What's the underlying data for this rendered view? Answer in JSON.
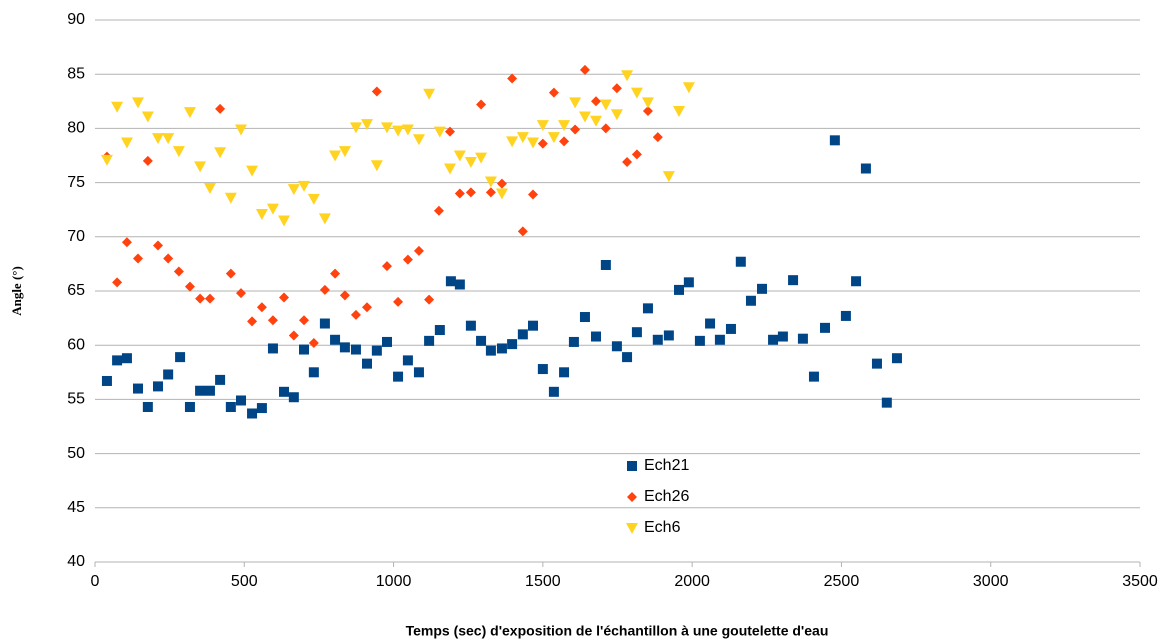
{
  "chart_data": {
    "type": "scatter",
    "x_label": "Temps (sec) d'exposition de l'échantillon à une goutelette d'eau",
    "y_label": "Angle (°)",
    "xlim": [
      0,
      3500
    ],
    "xticks": [
      0,
      500,
      1000,
      1500,
      2000,
      2500,
      3000,
      3500
    ],
    "ylim": [
      40,
      90
    ],
    "yticks": [
      40,
      45,
      50,
      55,
      60,
      65,
      70,
      75,
      80,
      85,
      90
    ],
    "grid": true,
    "legend": "center",
    "series": [
      {
        "name": "Ech21",
        "color": "#004586",
        "marker": "square",
        "x": [
          40,
          74,
          107,
          144,
          177,
          211,
          245,
          285,
          318,
          352,
          385,
          419,
          455,
          489,
          526,
          559,
          596,
          633,
          666,
          700,
          733,
          770,
          804,
          837,
          874,
          911,
          944,
          978,
          1015,
          1048,
          1085,
          1119,
          1155,
          1192,
          1222,
          1259,
          1293,
          1326,
          1363,
          1397,
          1433,
          1467,
          1500,
          1537,
          1571,
          1604,
          1641,
          1678,
          1711,
          1748,
          1782,
          1815,
          1852,
          1885,
          1922,
          1956,
          1989,
          2026,
          2060,
          2093,
          2130,
          2163,
          2197,
          2234,
          2271,
          2304,
          2338,
          2371,
          2408,
          2445,
          2478,
          2515,
          2549,
          2582,
          2619,
          2652,
          2686
        ],
        "values": [
          56.7,
          58.6,
          58.8,
          56.0,
          54.3,
          56.2,
          57.3,
          58.9,
          54.3,
          55.8,
          55.8,
          56.8,
          54.3,
          54.9,
          53.7,
          54.2,
          59.7,
          55.7,
          55.2,
          59.6,
          57.5,
          62.0,
          60.5,
          59.8,
          59.6,
          58.3,
          59.5,
          60.3,
          57.1,
          58.6,
          57.5,
          60.4,
          61.4,
          65.9,
          65.6,
          61.8,
          60.4,
          59.5,
          59.7,
          60.1,
          61.0,
          61.8,
          57.8,
          55.7,
          57.5,
          60.3,
          62.6,
          60.8,
          67.4,
          59.9,
          58.9,
          61.2,
          63.4,
          60.5,
          60.9,
          65.1,
          65.8,
          60.4,
          62.0,
          60.5,
          61.5,
          67.7,
          64.1,
          65.2,
          60.5,
          60.8,
          66.0,
          60.6,
          57.1,
          61.6,
          78.9,
          62.7,
          65.9,
          76.3,
          58.3,
          54.7,
          58.8
        ]
      },
      {
        "name": "Ech26",
        "color": "#ff420e",
        "marker": "diamond",
        "x": [
          40,
          74,
          107,
          144,
          177,
          211,
          245,
          281,
          318,
          352,
          385,
          419,
          455,
          489,
          526,
          559,
          596,
          633,
          666,
          700,
          733,
          770,
          804,
          837,
          874,
          911,
          944,
          978,
          1015,
          1048,
          1085,
          1119,
          1152,
          1189,
          1222,
          1259,
          1293,
          1326,
          1363,
          1397,
          1433,
          1467,
          1500,
          1537,
          1571,
          1608,
          1641,
          1678,
          1711,
          1748,
          1782,
          1815,
          1852,
          1885
        ],
        "values": [
          77.4,
          65.8,
          69.5,
          68.0,
          77.0,
          69.2,
          68.0,
          66.8,
          65.4,
          64.3,
          64.3,
          81.8,
          66.6,
          64.8,
          62.2,
          63.5,
          62.3,
          64.4,
          60.9,
          62.3,
          60.2,
          65.1,
          66.6,
          64.6,
          62.8,
          63.5,
          83.4,
          67.3,
          64.0,
          67.9,
          68.7,
          64.2,
          72.4,
          79.7,
          74.0,
          74.1,
          82.2,
          74.1,
          74.9,
          84.6,
          70.5,
          73.9,
          78.6,
          83.3,
          78.8,
          79.9,
          85.4,
          82.5,
          80.0,
          83.7,
          76.9,
          77.6,
          81.6,
          79.2
        ]
      },
      {
        "name": "Ech6",
        "color": "#ffd320",
        "marker": "triangle",
        "x": [
          40,
          74,
          107,
          144,
          177,
          211,
          245,
          281,
          318,
          352,
          385,
          419,
          455,
          489,
          526,
          559,
          596,
          633,
          666,
          700,
          733,
          770,
          804,
          837,
          874,
          911,
          944,
          978,
          1015,
          1048,
          1085,
          1119,
          1155,
          1189,
          1222,
          1259,
          1293,
          1326,
          1363,
          1397,
          1433,
          1467,
          1500,
          1537,
          1571,
          1608,
          1641,
          1678,
          1711,
          1748,
          1782,
          1815,
          1852,
          1922,
          1956,
          1989
        ],
        "values": [
          77.1,
          82.0,
          78.7,
          82.4,
          81.1,
          79.1,
          79.1,
          77.9,
          81.5,
          76.5,
          74.5,
          77.8,
          73.6,
          79.9,
          76.1,
          72.1,
          72.6,
          71.5,
          74.4,
          74.7,
          73.5,
          71.7,
          77.5,
          77.9,
          80.1,
          80.4,
          76.6,
          80.1,
          79.8,
          79.9,
          79.0,
          83.2,
          79.7,
          76.3,
          77.5,
          76.9,
          77.3,
          75.1,
          74.0,
          78.8,
          79.2,
          78.7,
          80.3,
          79.2,
          80.3,
          82.4,
          81.1,
          80.7,
          82.2,
          81.3,
          84.9,
          83.3,
          82.4,
          75.6,
          81.6,
          83.8
        ]
      }
    ]
  }
}
